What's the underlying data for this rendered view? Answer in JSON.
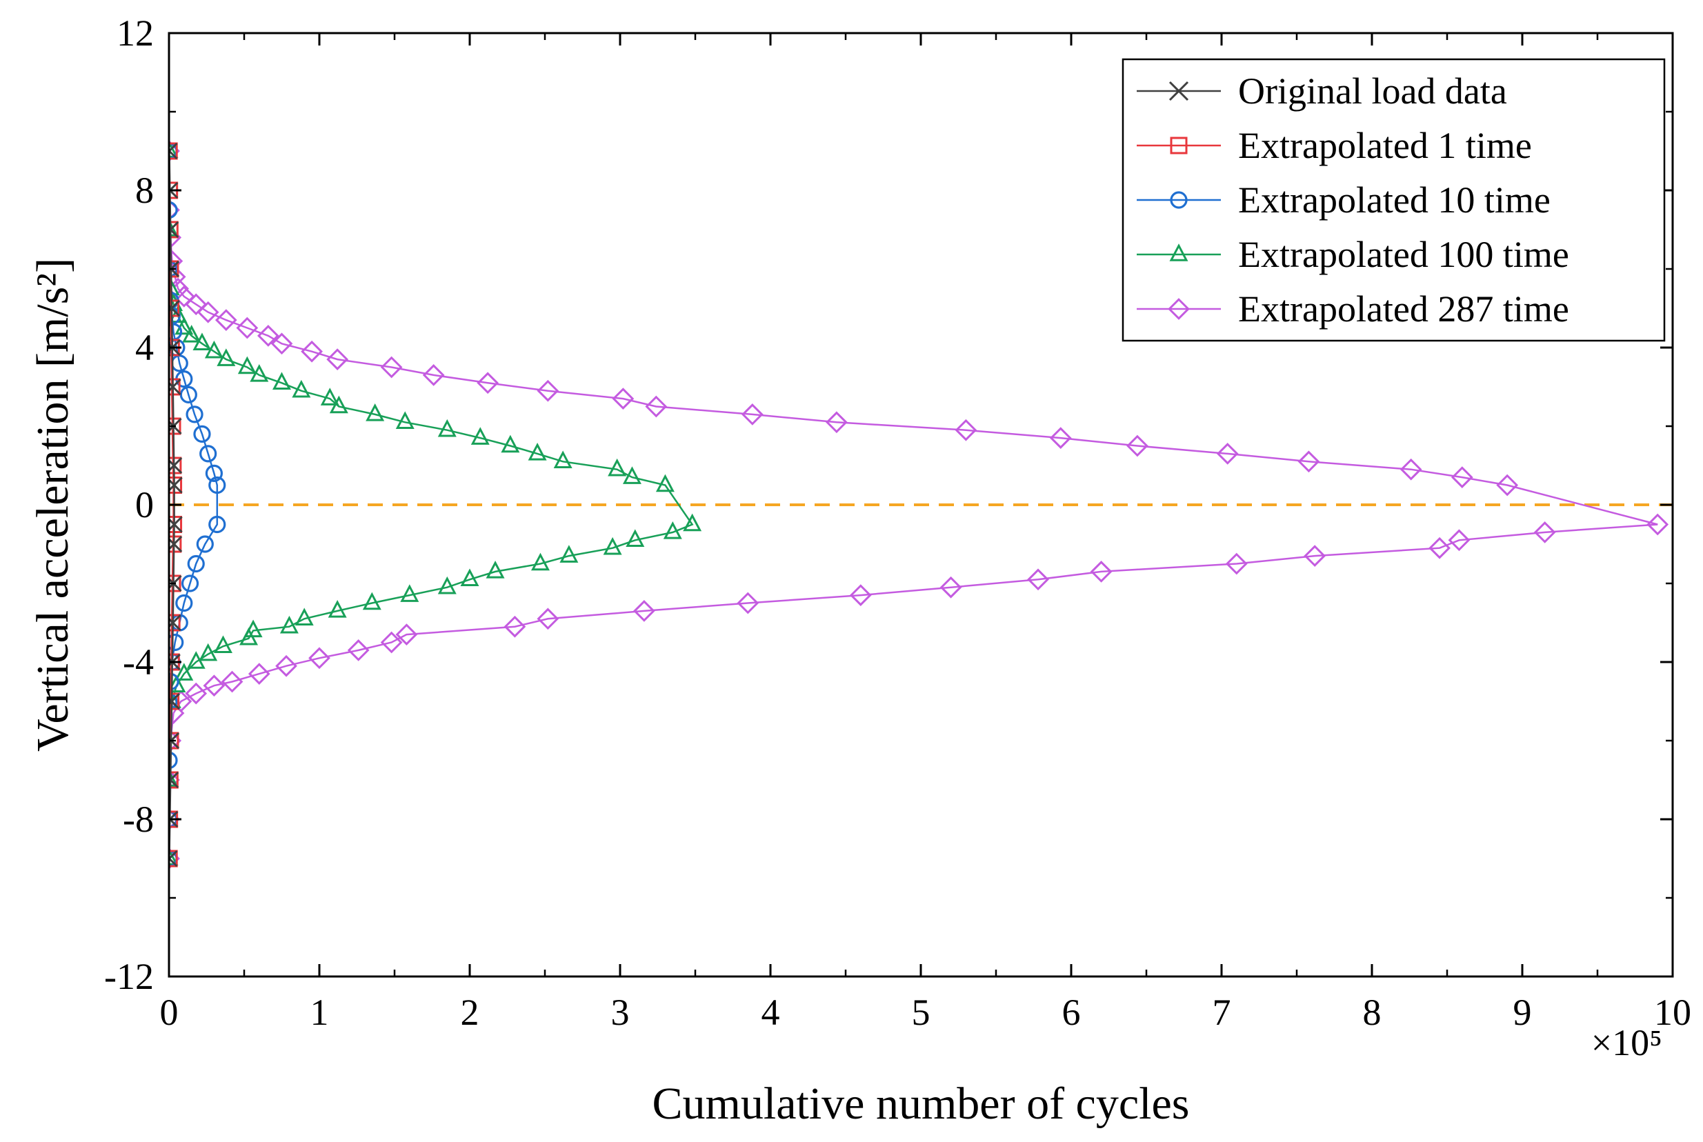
{
  "chart_data": {
    "type": "line",
    "xlabel": "Cumulative number of cycles",
    "ylabel": "Vertical acceleration [m/s²]",
    "x_multiplier": "×10⁵",
    "xlim": [
      0,
      10
    ],
    "ylim": [
      -12,
      12
    ],
    "x_ticks": [
      "0",
      "1",
      "2",
      "3",
      "4",
      "5",
      "6",
      "7",
      "8",
      "9",
      "10"
    ],
    "y_ticks": [
      "-12",
      "-8",
      "-4",
      "0",
      "4",
      "8",
      "12"
    ],
    "grid": false,
    "legend_position": "top-right",
    "reference_line": {
      "y": 0,
      "style": "dashed",
      "color": "#f5a623"
    },
    "series": [
      {
        "name": "Original load data",
        "marker": "x",
        "color": "#404040",
        "points": [
          [
            0.002,
            -9.0
          ],
          [
            0.006,
            -8.0
          ],
          [
            0.01,
            -7.0
          ],
          [
            0.014,
            -6.0
          ],
          [
            0.018,
            -5.0
          ],
          [
            0.022,
            -4.0
          ],
          [
            0.026,
            -3.0
          ],
          [
            0.03,
            -2.0
          ],
          [
            0.033,
            -1.0
          ],
          [
            0.035,
            -0.5
          ],
          [
            0.035,
            0.5
          ],
          [
            0.033,
            1.0
          ],
          [
            0.03,
            2.0
          ],
          [
            0.026,
            3.0
          ],
          [
            0.022,
            4.0
          ],
          [
            0.018,
            5.0
          ],
          [
            0.014,
            6.0
          ],
          [
            0.01,
            7.0
          ],
          [
            0.006,
            8.0
          ],
          [
            0.002,
            9.0
          ]
        ]
      },
      {
        "name": "Extrapolated 1 time",
        "marker": "square",
        "color": "#e8373c",
        "points": [
          [
            0.001,
            -9.0
          ],
          [
            0.003,
            -8.0
          ],
          [
            0.006,
            -7.0
          ],
          [
            0.009,
            -6.0
          ],
          [
            0.012,
            -5.0
          ],
          [
            0.015,
            -4.0
          ],
          [
            0.019,
            -3.0
          ],
          [
            0.023,
            -2.0
          ],
          [
            0.027,
            -1.0
          ],
          [
            0.03,
            -0.5
          ],
          [
            0.03,
            0.5
          ],
          [
            0.027,
            1.0
          ],
          [
            0.023,
            2.0
          ],
          [
            0.019,
            3.0
          ],
          [
            0.015,
            4.0
          ],
          [
            0.012,
            5.0
          ],
          [
            0.009,
            6.0
          ],
          [
            0.006,
            7.0
          ],
          [
            0.003,
            8.0
          ],
          [
            0.001,
            9.0
          ]
        ]
      },
      {
        "name": "Extrapolated 10 time",
        "marker": "circle",
        "color": "#1f6fd1",
        "points": [
          [
            0.0,
            -9.0
          ],
          [
            0.0,
            -8.0
          ],
          [
            0.0,
            -6.5
          ],
          [
            0.0,
            -5.0
          ],
          [
            0.01,
            -4.5
          ],
          [
            0.02,
            -4.0
          ],
          [
            0.04,
            -3.5
          ],
          [
            0.07,
            -3.0
          ],
          [
            0.1,
            -2.5
          ],
          [
            0.14,
            -2.0
          ],
          [
            0.18,
            -1.5
          ],
          [
            0.24,
            -1.0
          ],
          [
            0.32,
            -0.5
          ],
          [
            0.32,
            0.5
          ],
          [
            0.3,
            0.8
          ],
          [
            0.26,
            1.3
          ],
          [
            0.22,
            1.8
          ],
          [
            0.17,
            2.3
          ],
          [
            0.13,
            2.8
          ],
          [
            0.1,
            3.2
          ],
          [
            0.07,
            3.6
          ],
          [
            0.05,
            4.0
          ],
          [
            0.03,
            4.4
          ],
          [
            0.02,
            4.8
          ],
          [
            0.01,
            5.2
          ],
          [
            0.0,
            6.0
          ],
          [
            0.0,
            7.5
          ],
          [
            0.0,
            9.0
          ]
        ]
      },
      {
        "name": "Extrapolated 100 time",
        "marker": "triangle",
        "color": "#18a058",
        "points": [
          [
            0.0,
            -9.0
          ],
          [
            0.0,
            -7.0
          ],
          [
            0.02,
            -5.0
          ],
          [
            0.05,
            -4.6
          ],
          [
            0.1,
            -4.3
          ],
          [
            0.18,
            -4.0
          ],
          [
            0.26,
            -3.8
          ],
          [
            0.36,
            -3.6
          ],
          [
            0.53,
            -3.4
          ],
          [
            0.56,
            -3.2
          ],
          [
            0.8,
            -3.1
          ],
          [
            0.9,
            -2.9
          ],
          [
            1.12,
            -2.7
          ],
          [
            1.35,
            -2.5
          ],
          [
            1.6,
            -2.3
          ],
          [
            1.85,
            -2.1
          ],
          [
            2.0,
            -1.9
          ],
          [
            2.17,
            -1.7
          ],
          [
            2.47,
            -1.5
          ],
          [
            2.66,
            -1.3
          ],
          [
            2.95,
            -1.1
          ],
          [
            3.1,
            -0.9
          ],
          [
            3.35,
            -0.7
          ],
          [
            3.48,
            -0.5
          ],
          [
            3.3,
            0.5
          ],
          [
            3.08,
            0.7
          ],
          [
            2.98,
            0.9
          ],
          [
            2.62,
            1.1
          ],
          [
            2.45,
            1.3
          ],
          [
            2.27,
            1.5
          ],
          [
            2.07,
            1.7
          ],
          [
            1.85,
            1.9
          ],
          [
            1.57,
            2.1
          ],
          [
            1.37,
            2.3
          ],
          [
            1.13,
            2.5
          ],
          [
            1.07,
            2.7
          ],
          [
            0.88,
            2.9
          ],
          [
            0.75,
            3.1
          ],
          [
            0.6,
            3.3
          ],
          [
            0.52,
            3.5
          ],
          [
            0.38,
            3.7
          ],
          [
            0.3,
            3.9
          ],
          [
            0.22,
            4.1
          ],
          [
            0.15,
            4.3
          ],
          [
            0.1,
            4.5
          ],
          [
            0.06,
            4.8
          ],
          [
            0.03,
            5.1
          ],
          [
            0.01,
            5.5
          ],
          [
            0.0,
            7.0
          ],
          [
            0.0,
            9.0
          ]
        ]
      },
      {
        "name": "Extrapolated 287 time",
        "marker": "diamond",
        "color": "#c45be0",
        "points": [
          [
            0.0,
            -9.0
          ],
          [
            0.0,
            -8.0
          ],
          [
            0.0,
            -7.0
          ],
          [
            0.01,
            -6.0
          ],
          [
            0.03,
            -5.3
          ],
          [
            0.08,
            -5.0
          ],
          [
            0.18,
            -4.8
          ],
          [
            0.3,
            -4.6
          ],
          [
            0.42,
            -4.5
          ],
          [
            0.6,
            -4.3
          ],
          [
            0.78,
            -4.1
          ],
          [
            1.0,
            -3.9
          ],
          [
            1.26,
            -3.7
          ],
          [
            1.48,
            -3.5
          ],
          [
            1.58,
            -3.3
          ],
          [
            2.3,
            -3.1
          ],
          [
            2.52,
            -2.9
          ],
          [
            3.16,
            -2.7
          ],
          [
            3.85,
            -2.5
          ],
          [
            4.6,
            -2.3
          ],
          [
            5.2,
            -2.1
          ],
          [
            5.78,
            -1.9
          ],
          [
            6.2,
            -1.7
          ],
          [
            7.1,
            -1.5
          ],
          [
            7.62,
            -1.3
          ],
          [
            8.45,
            -1.1
          ],
          [
            8.58,
            -0.9
          ],
          [
            9.15,
            -0.7
          ],
          [
            9.9,
            -0.5
          ],
          [
            8.9,
            0.5
          ],
          [
            8.6,
            0.7
          ],
          [
            8.26,
            0.9
          ],
          [
            7.58,
            1.1
          ],
          [
            7.04,
            1.3
          ],
          [
            6.44,
            1.5
          ],
          [
            5.93,
            1.7
          ],
          [
            5.3,
            1.9
          ],
          [
            4.44,
            2.1
          ],
          [
            3.88,
            2.3
          ],
          [
            3.24,
            2.5
          ],
          [
            3.02,
            2.7
          ],
          [
            2.52,
            2.9
          ],
          [
            2.12,
            3.1
          ],
          [
            1.76,
            3.3
          ],
          [
            1.48,
            3.5
          ],
          [
            1.12,
            3.7
          ],
          [
            0.95,
            3.9
          ],
          [
            0.75,
            4.1
          ],
          [
            0.66,
            4.3
          ],
          [
            0.52,
            4.5
          ],
          [
            0.38,
            4.7
          ],
          [
            0.26,
            4.9
          ],
          [
            0.18,
            5.1
          ],
          [
            0.1,
            5.3
          ],
          [
            0.06,
            5.5
          ],
          [
            0.04,
            5.8
          ],
          [
            0.02,
            6.2
          ],
          [
            0.01,
            6.8
          ],
          [
            0.0,
            7.5
          ],
          [
            0.0,
            9.0
          ]
        ]
      }
    ]
  }
}
